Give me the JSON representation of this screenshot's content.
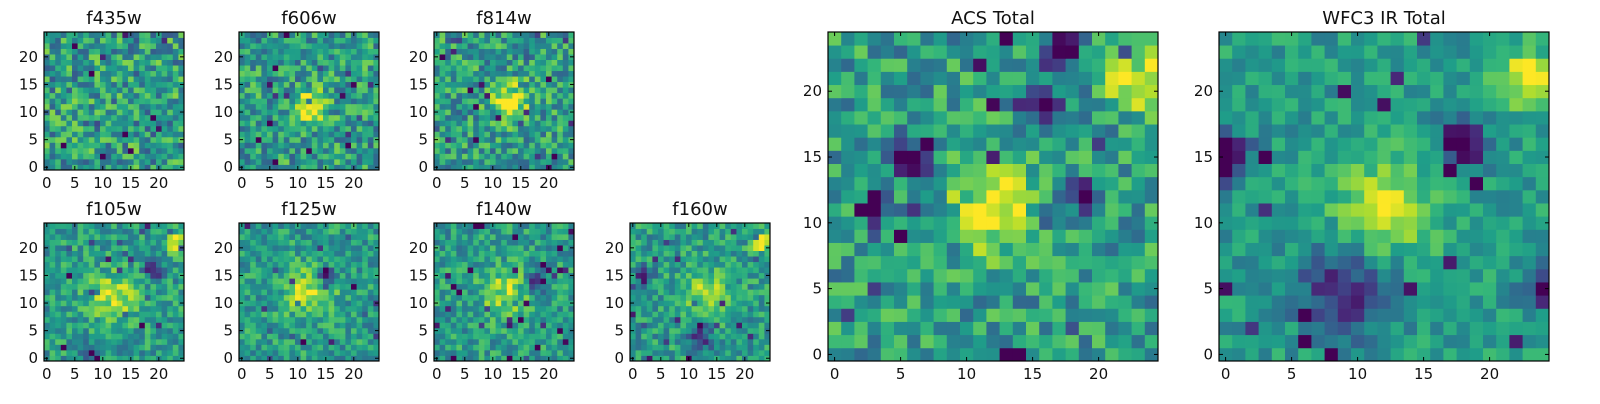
{
  "figure": {
    "colormap": "viridis",
    "background": "#ffffff"
  },
  "chart_data": [
    {
      "type": "heatmap",
      "title": "f435w",
      "grid": false,
      "xlim": [
        0,
        24
      ],
      "ylim": [
        0,
        24
      ],
      "xticks": [
        0,
        5,
        10,
        15,
        20
      ],
      "yticks": [
        0,
        5,
        10,
        15,
        20
      ],
      "xticklabels": [
        "0",
        "5",
        "10",
        "15",
        "20"
      ],
      "yticklabels": [
        "0",
        "5",
        "10",
        "15",
        "20"
      ],
      "cells": {
        "nx": 25,
        "ny": 25,
        "seed": 11,
        "noise": 0.55,
        "blobs": [],
        "holes": []
      }
    },
    {
      "type": "heatmap",
      "title": "f606w",
      "grid": false,
      "xlim": [
        0,
        24
      ],
      "ylim": [
        0,
        24
      ],
      "xticks": [
        0,
        5,
        10,
        15,
        20
      ],
      "yticks": [
        0,
        5,
        10,
        15,
        20
      ],
      "xticklabels": [
        "0",
        "5",
        "10",
        "15",
        "20"
      ],
      "yticklabels": [
        "0",
        "5",
        "10",
        "15",
        "20"
      ],
      "cells": {
        "nx": 25,
        "ny": 25,
        "seed": 23,
        "noise": 0.5,
        "blobs": [
          [
            12,
            11,
            2.2,
            0.4
          ]
        ],
        "holes": []
      }
    },
    {
      "type": "heatmap",
      "title": "f814w",
      "grid": false,
      "xlim": [
        0,
        24
      ],
      "ylim": [
        0,
        24
      ],
      "xticks": [
        0,
        5,
        10,
        15,
        20
      ],
      "yticks": [
        0,
        5,
        10,
        15,
        20
      ],
      "xticklabels": [
        "0",
        "5",
        "10",
        "15",
        "20"
      ],
      "yticklabels": [
        "0",
        "5",
        "10",
        "15",
        "20"
      ],
      "cells": {
        "nx": 25,
        "ny": 25,
        "seed": 37,
        "noise": 0.5,
        "blobs": [
          [
            13,
            12,
            2.2,
            0.5
          ]
        ],
        "holes": []
      }
    },
    {
      "type": "heatmap",
      "title": "f105w",
      "grid": false,
      "xlim": [
        0,
        24
      ],
      "ylim": [
        0,
        24
      ],
      "xticks": [
        0,
        5,
        10,
        15,
        20
      ],
      "yticks": [
        0,
        5,
        10,
        15,
        20
      ],
      "xticklabels": [
        "0",
        "5",
        "10",
        "15",
        "20"
      ],
      "yticklabels": [
        "0",
        "5",
        "10",
        "15",
        "20"
      ],
      "cells": {
        "nx": 25,
        "ny": 25,
        "seed": 41,
        "noise": 0.38,
        "blobs": [
          [
            12,
            11,
            3,
            0.35
          ],
          [
            23,
            21,
            1.2,
            0.4
          ]
        ],
        "holes": [
          [
            19,
            16,
            1,
            0.6
          ],
          [
            8,
            1,
            1,
            0.6
          ]
        ]
      }
    },
    {
      "type": "heatmap",
      "title": "f125w",
      "grid": false,
      "xlim": [
        0,
        24
      ],
      "ylim": [
        0,
        24
      ],
      "xticks": [
        0,
        5,
        10,
        15,
        20
      ],
      "yticks": [
        0,
        5,
        10,
        15,
        20
      ],
      "xticklabels": [
        "0",
        "5",
        "10",
        "15",
        "20"
      ],
      "yticklabels": [
        "0",
        "5",
        "10",
        "15",
        "20"
      ],
      "cells": {
        "nx": 25,
        "ny": 25,
        "seed": 53,
        "noise": 0.38,
        "blobs": [
          [
            12,
            12,
            3,
            0.35
          ]
        ],
        "holes": [
          [
            15,
            15,
            1,
            0.6
          ]
        ]
      }
    },
    {
      "type": "heatmap",
      "title": "f140w",
      "grid": false,
      "xlim": [
        0,
        24
      ],
      "ylim": [
        0,
        24
      ],
      "xticks": [
        0,
        5,
        10,
        15,
        20
      ],
      "yticks": [
        0,
        5,
        10,
        15,
        20
      ],
      "xticklabels": [
        "0",
        "5",
        "10",
        "15",
        "20"
      ],
      "yticklabels": [
        "0",
        "5",
        "10",
        "15",
        "20"
      ],
      "cells": {
        "nx": 25,
        "ny": 25,
        "seed": 67,
        "noise": 0.38,
        "blobs": [
          [
            12,
            12,
            3,
            0.3
          ]
        ],
        "holes": [
          [
            18,
            14,
            1.2,
            0.6
          ]
        ]
      }
    },
    {
      "type": "heatmap",
      "title": "f160w",
      "grid": false,
      "xlim": [
        0,
        24
      ],
      "ylim": [
        0,
        24
      ],
      "xticks": [
        0,
        5,
        10,
        15,
        20
      ],
      "yticks": [
        0,
        5,
        10,
        15,
        20
      ],
      "xticklabels": [
        "0",
        "5",
        "10",
        "15",
        "20"
      ],
      "yticklabels": [
        "0",
        "5",
        "10",
        "15",
        "20"
      ],
      "cells": {
        "nx": 25,
        "ny": 25,
        "seed": 79,
        "noise": 0.38,
        "blobs": [
          [
            13,
            12,
            3,
            0.3
          ],
          [
            23,
            21,
            1.2,
            0.4
          ]
        ],
        "holes": [
          [
            2,
            15,
            1,
            0.6
          ],
          [
            12,
            4,
            1.5,
            0.5
          ]
        ]
      }
    },
    {
      "type": "heatmap",
      "title": "ACS Total",
      "grid": false,
      "xlim": [
        0,
        24
      ],
      "ylim": [
        0,
        24
      ],
      "xticks": [
        0,
        5,
        10,
        15,
        20
      ],
      "yticks": [
        0,
        5,
        10,
        15,
        20
      ],
      "xticklabels": [
        "0",
        "5",
        "10",
        "15",
        "20"
      ],
      "yticklabels": [
        "0",
        "5",
        "10",
        "15",
        "20"
      ],
      "cells": {
        "nx": 25,
        "ny": 25,
        "seed": 97,
        "noise": 0.45,
        "blobs": [
          [
            12,
            11,
            2,
            0.55
          ],
          [
            23,
            21,
            1.5,
            0.5
          ]
        ],
        "holes": [
          [
            6,
            15,
            1,
            0.7
          ],
          [
            17,
            23,
            1,
            0.7
          ],
          [
            19,
            12,
            0.8,
            0.7
          ],
          [
            3,
            11,
            0.8,
            0.7
          ],
          [
            16,
            19,
            0.8,
            0.7
          ]
        ]
      }
    },
    {
      "type": "heatmap",
      "title": "WFC3 IR Total",
      "grid": false,
      "xlim": [
        0,
        24
      ],
      "ylim": [
        0,
        24
      ],
      "xticks": [
        0,
        5,
        10,
        15,
        20
      ],
      "yticks": [
        0,
        5,
        10,
        15,
        20
      ],
      "xticklabels": [
        "0",
        "5",
        "10",
        "15",
        "20"
      ],
      "yticklabels": [
        "0",
        "5",
        "10",
        "15",
        "20"
      ],
      "cells": {
        "nx": 25,
        "ny": 25,
        "seed": 113,
        "noise": 0.28,
        "blobs": [
          [
            12,
            11,
            2.5,
            0.45
          ],
          [
            23,
            21,
            1.5,
            0.5
          ]
        ],
        "holes": [
          [
            18,
            16,
            1.2,
            0.75
          ],
          [
            0,
            15,
            1.2,
            0.75
          ],
          [
            9,
            5,
            2.5,
            0.45
          ],
          [
            24,
            5,
            1,
            0.6
          ]
        ]
      }
    }
  ]
}
